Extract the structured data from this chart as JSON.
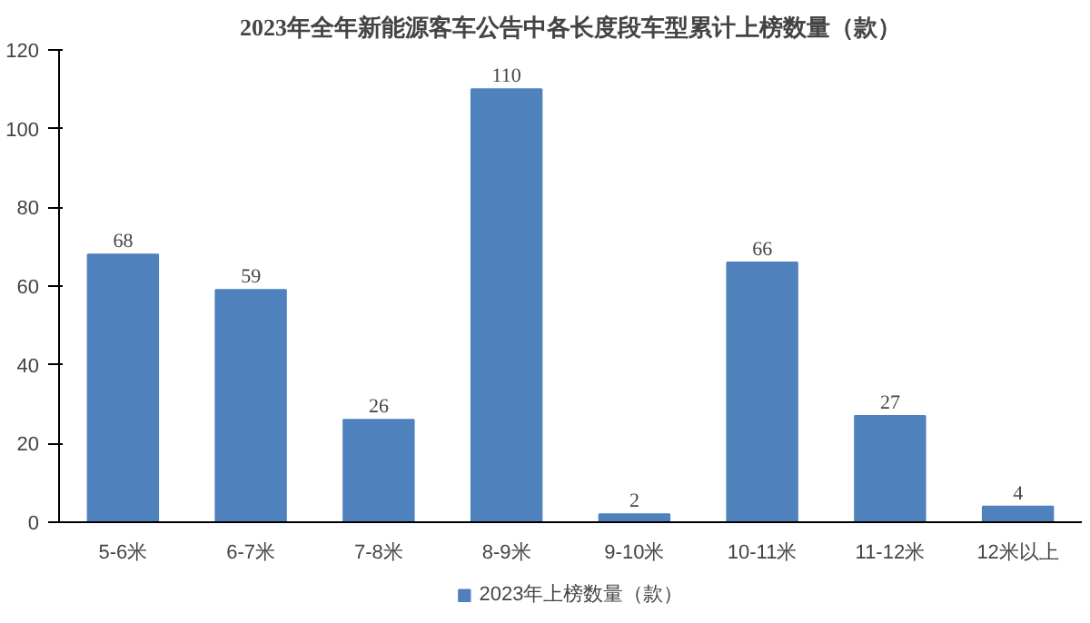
{
  "chart_data": {
    "type": "bar",
    "title": "2023年全年新能源客车公告中各长度段车型累计上榜数量（款）",
    "categories": [
      "5-6米",
      "6-7米",
      "7-8米",
      "8-9米",
      "9-10米",
      "10-11米",
      "11-12米",
      "12米以上"
    ],
    "series": [
      {
        "name": "2023年上榜数量（款）",
        "color": "#4f81bd",
        "values": [
          68,
          59,
          26,
          110,
          2,
          66,
          27,
          4
        ]
      }
    ],
    "ylim": [
      0,
      120
    ],
    "yticks": [
      0,
      20,
      40,
      60,
      80,
      100,
      120
    ],
    "grid": false,
    "legend": "bottom",
    "data_labels": true
  }
}
